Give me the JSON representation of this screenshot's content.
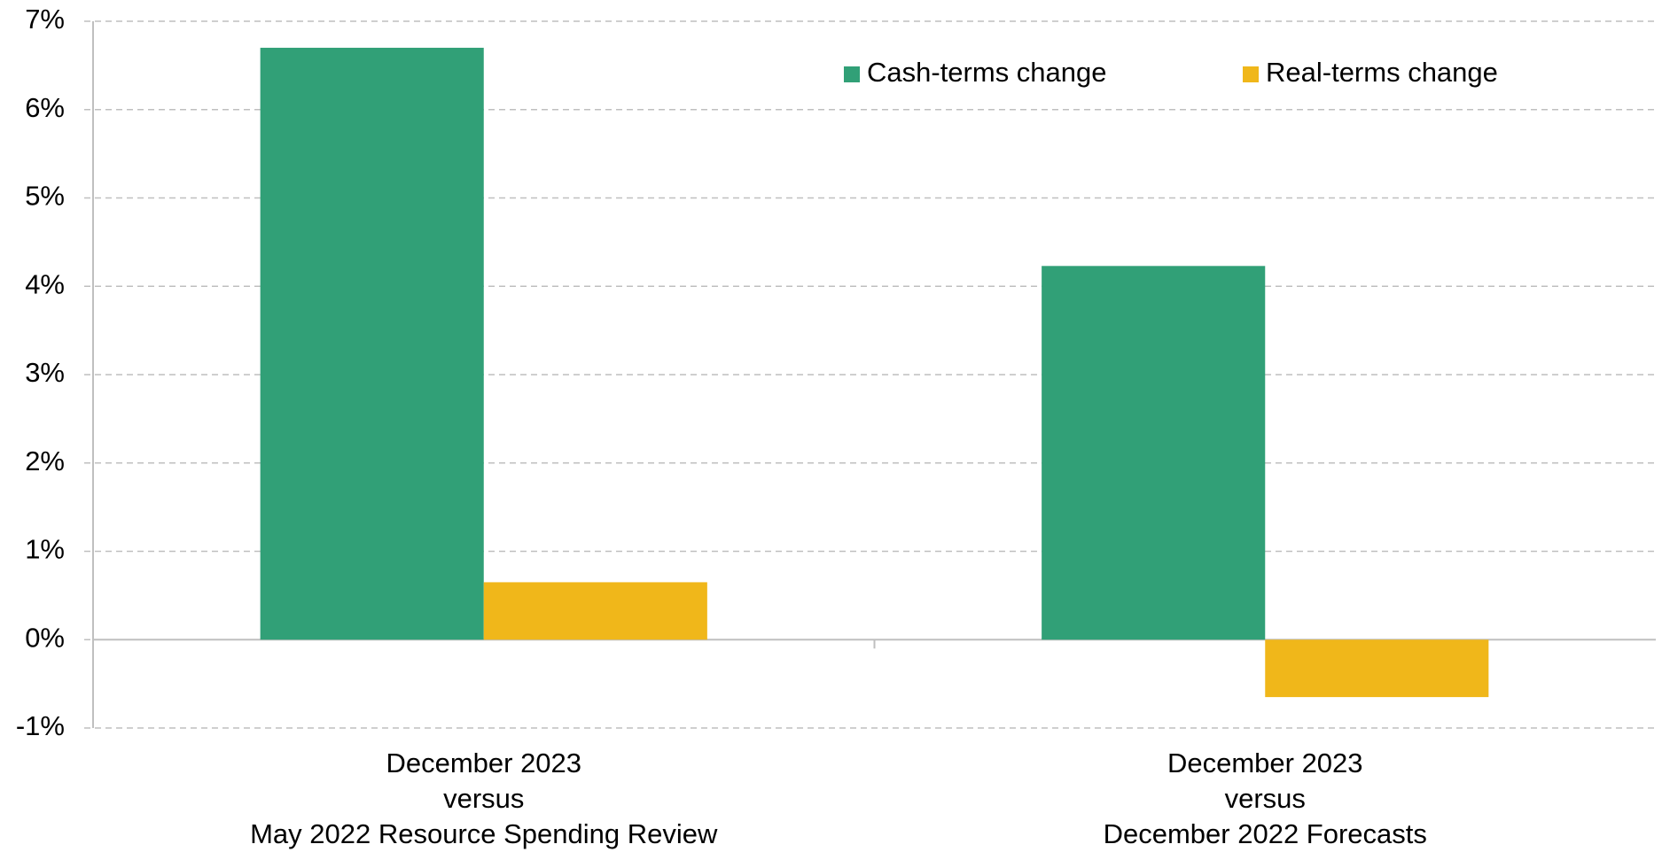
{
  "chart_data": {
    "type": "bar",
    "categories": [
      [
        "December 2023",
        "versus",
        "May 2022 Resource Spending Review"
      ],
      [
        "December 2023",
        "versus",
        "December 2022 Forecasts"
      ]
    ],
    "series": [
      {
        "name": "Cash-terms change",
        "color": "#31a077",
        "values": [
          6.7,
          4.23
        ]
      },
      {
        "name": "Real-terms change",
        "color": "#f0b71a",
        "values": [
          0.65,
          -0.65
        ]
      }
    ],
    "ylim": [
      -1,
      7
    ],
    "yticks": [
      {
        "value": -1,
        "label": "-1%"
      },
      {
        "value": 0,
        "label": "0%"
      },
      {
        "value": 1,
        "label": "1%"
      },
      {
        "value": 2,
        "label": "2%"
      },
      {
        "value": 3,
        "label": "3%"
      },
      {
        "value": 4,
        "label": "4%"
      },
      {
        "value": 5,
        "label": "5%"
      },
      {
        "value": 6,
        "label": "6%"
      },
      {
        "value": 7,
        "label": "7%"
      }
    ],
    "grid": true,
    "legend": "top-right"
  }
}
